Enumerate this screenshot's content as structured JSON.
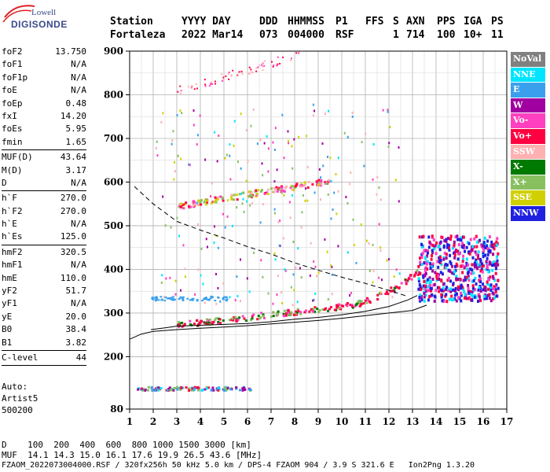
{
  "logo": {
    "line1": "Lowell",
    "line2": "DIGISONDE"
  },
  "header": {
    "row1": [
      "Station",
      "YYYY DAY",
      "DDD",
      "HHMMSS",
      "P1",
      "FFS",
      "S",
      "AXN",
      "PPS",
      "IGA",
      "PS"
    ],
    "row2": [
      "Fortaleza",
      "2022 Mar14",
      "073",
      "004000",
      "RSF",
      "",
      "1",
      "714",
      "100",
      "10+",
      "11"
    ]
  },
  "params": [
    [
      {
        "k": "foF2",
        "v": "13.750"
      },
      {
        "k": "foF1",
        "v": "N/A"
      },
      {
        "k": "foF1p",
        "v": "N/A"
      },
      {
        "k": "foE",
        "v": "N/A"
      },
      {
        "k": "foEp",
        "v": "0.48"
      },
      {
        "k": "fxI",
        "v": "14.20"
      },
      {
        "k": "foEs",
        "v": "5.95"
      },
      {
        "k": "fmin",
        "v": "1.65"
      }
    ],
    [
      {
        "k": "MUF(D)",
        "v": "43.64"
      },
      {
        "k": "M(D)",
        "v": "3.17"
      },
      {
        "k": "D",
        "v": "N/A"
      }
    ],
    [
      {
        "k": "h`F",
        "v": "270.0"
      },
      {
        "k": "h`F2",
        "v": "270.0"
      },
      {
        "k": "h`E",
        "v": "N/A"
      },
      {
        "k": "h`Es",
        "v": "125.0"
      }
    ],
    [
      {
        "k": "hmF2",
        "v": "320.5"
      },
      {
        "k": "hmF1",
        "v": "N/A"
      },
      {
        "k": "hmE",
        "v": "110.0"
      },
      {
        "k": "yF2",
        "v": "51.7"
      },
      {
        "k": "yF1",
        "v": "N/A"
      },
      {
        "k": "yE",
        "v": "20.0"
      },
      {
        "k": "B0",
        "v": "38.4"
      },
      {
        "k": "B1",
        "v": "3.82"
      }
    ],
    [
      {
        "k": "C-level",
        "v": "44"
      }
    ]
  ],
  "auto": {
    "line1": "Auto:",
    "line2": "Artist5",
    "line3": "500200"
  },
  "bottom": {
    "line1": "D    100  200  400  600  800 1000 1500 3000 [km]",
    "line2": "MUF  14.1 14.3 15.0 16.1 17.6 19.9 26.5 43.6 [MHz]",
    "line3": "FZAOM_2022073004000.RSF / 320fx256h 50 kHz 5.0 km / DPS-4 FZAOM 904 / 3.9 S 321.6 E   Ion2Png 1.3.20"
  },
  "legend": [
    {
      "label": "NoVal",
      "color": "#808080"
    },
    {
      "label": "NNE",
      "color": "#00e5ff"
    },
    {
      "label": "E",
      "color": "#3aa0ee"
    },
    {
      "label": "W",
      "color": "#a000a0"
    },
    {
      "label": "Vo-",
      "color": "#ff40c0"
    },
    {
      "label": "Vo+",
      "color": "#ff0040"
    },
    {
      "label": "SSW",
      "color": "#ffb0b0"
    },
    {
      "label": "X-",
      "color": "#007a00"
    },
    {
      "label": "X+",
      "color": "#88c060"
    },
    {
      "label": "SSE",
      "color": "#d0d000"
    },
    {
      "label": "NNW",
      "color": "#2020e0"
    }
  ],
  "chart_data": {
    "type": "scatter",
    "x": {
      "min": 1,
      "max": 17,
      "ticks": [
        1,
        2,
        3,
        4,
        5,
        6,
        7,
        8,
        9,
        10,
        11,
        12,
        13,
        14,
        15,
        16,
        17
      ]
    },
    "y": {
      "min": 80,
      "max": 900,
      "ticks": [
        80,
        200,
        300,
        400,
        500,
        600,
        700,
        800,
        900
      ]
    },
    "grid": true,
    "traces": {
      "o_trace": [
        [
          1.9,
          262
        ],
        [
          2.5,
          266
        ],
        [
          3.0,
          270
        ],
        [
          4.0,
          272
        ],
        [
          5.0,
          274
        ],
        [
          6.0,
          276
        ],
        [
          7.0,
          280
        ],
        [
          8.0,
          286
        ],
        [
          9.0,
          290
        ],
        [
          10.0,
          296
        ],
        [
          11.0,
          304
        ],
        [
          12.0,
          315
        ],
        [
          12.8,
          330
        ],
        [
          13.2,
          340
        ]
      ],
      "profile_solid": [
        [
          1.0,
          240
        ],
        [
          1.5,
          252
        ],
        [
          2.0,
          258
        ],
        [
          3.0,
          262
        ],
        [
          4.0,
          265
        ],
        [
          5.0,
          268
        ],
        [
          6.0,
          271
        ],
        [
          7.0,
          275
        ],
        [
          8.0,
          279
        ],
        [
          9.0,
          283
        ],
        [
          10.0,
          288
        ],
        [
          11.0,
          294
        ],
        [
          12.0,
          300
        ],
        [
          13.0,
          306
        ],
        [
          13.6,
          318
        ]
      ],
      "muf_dashed": [
        [
          1.2,
          590
        ],
        [
          2.0,
          550
        ],
        [
          3.0,
          510
        ],
        [
          4.0,
          490
        ],
        [
          5.0,
          472
        ],
        [
          6.0,
          452
        ],
        [
          7.0,
          435
        ],
        [
          8.0,
          415
        ],
        [
          9.0,
          398
        ],
        [
          10.0,
          382
        ],
        [
          11.0,
          368
        ],
        [
          12.0,
          352
        ],
        [
          12.8,
          338
        ]
      ]
    }
  }
}
